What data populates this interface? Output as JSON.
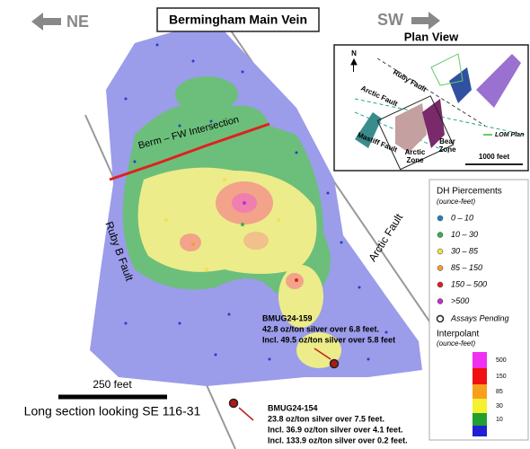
{
  "title": "Bermingham Main Vein",
  "directions": {
    "left": "NE",
    "right": "SW"
  },
  "map_labels": {
    "berm": "Berm – FW Intersection",
    "ruby_b": "Ruby B Fault",
    "arctic": "Arctic Fault"
  },
  "plan_view": {
    "title": "Plan View",
    "north": "N",
    "ruby_fault": "Ruby Fault",
    "arctic_fault": "Arctic Fault",
    "mastiff_fault": "Mastiff Fault",
    "arctic_zone": [
      "Arctic",
      "Zone"
    ],
    "bear_zone": [
      "Bear",
      "Zone"
    ],
    "lom_plan": "LOM Plan",
    "scale": "1000 feet"
  },
  "legend": {
    "title": "DH Piercements",
    "subtitle": "(ounce-feet)",
    "items": [
      {
        "label": "0 – 10",
        "color": "#2a7fb8"
      },
      {
        "label": "10 – 30",
        "color": "#3fae49"
      },
      {
        "label": "30 – 85",
        "color": "#f2e24a"
      },
      {
        "label": "85 – 150",
        "color": "#f0a030"
      },
      {
        "label": "150 – 500",
        "color": "#d8231f"
      },
      {
        "label": ">500",
        "color": "#c030d0"
      }
    ],
    "pending": "Assays Pending"
  },
  "interpolant": {
    "title": "Interpolant",
    "subtitle": "(ounce-feet)",
    "ticks": [
      500,
      150,
      85,
      30,
      10
    ]
  },
  "annotations": [
    {
      "id": "BMUG24-159",
      "lines": [
        "42.8 oz/ton silver  over 6.8 feet.",
        "Incl. 49.5 oz/ton silver over 5.8 feet"
      ]
    },
    {
      "id": "BMUG24-154",
      "lines": [
        "23.8 oz/ton silver  over 7.5 feet.",
        "Incl. 36.9 oz/ton silver over 4.1 feet.",
        "Incl. 133.9 oz/ton silver over 0.2 feet."
      ]
    }
  ],
  "scale_bar": {
    "label": "250 feet",
    "caption": "Long section looking SE 116-31"
  }
}
